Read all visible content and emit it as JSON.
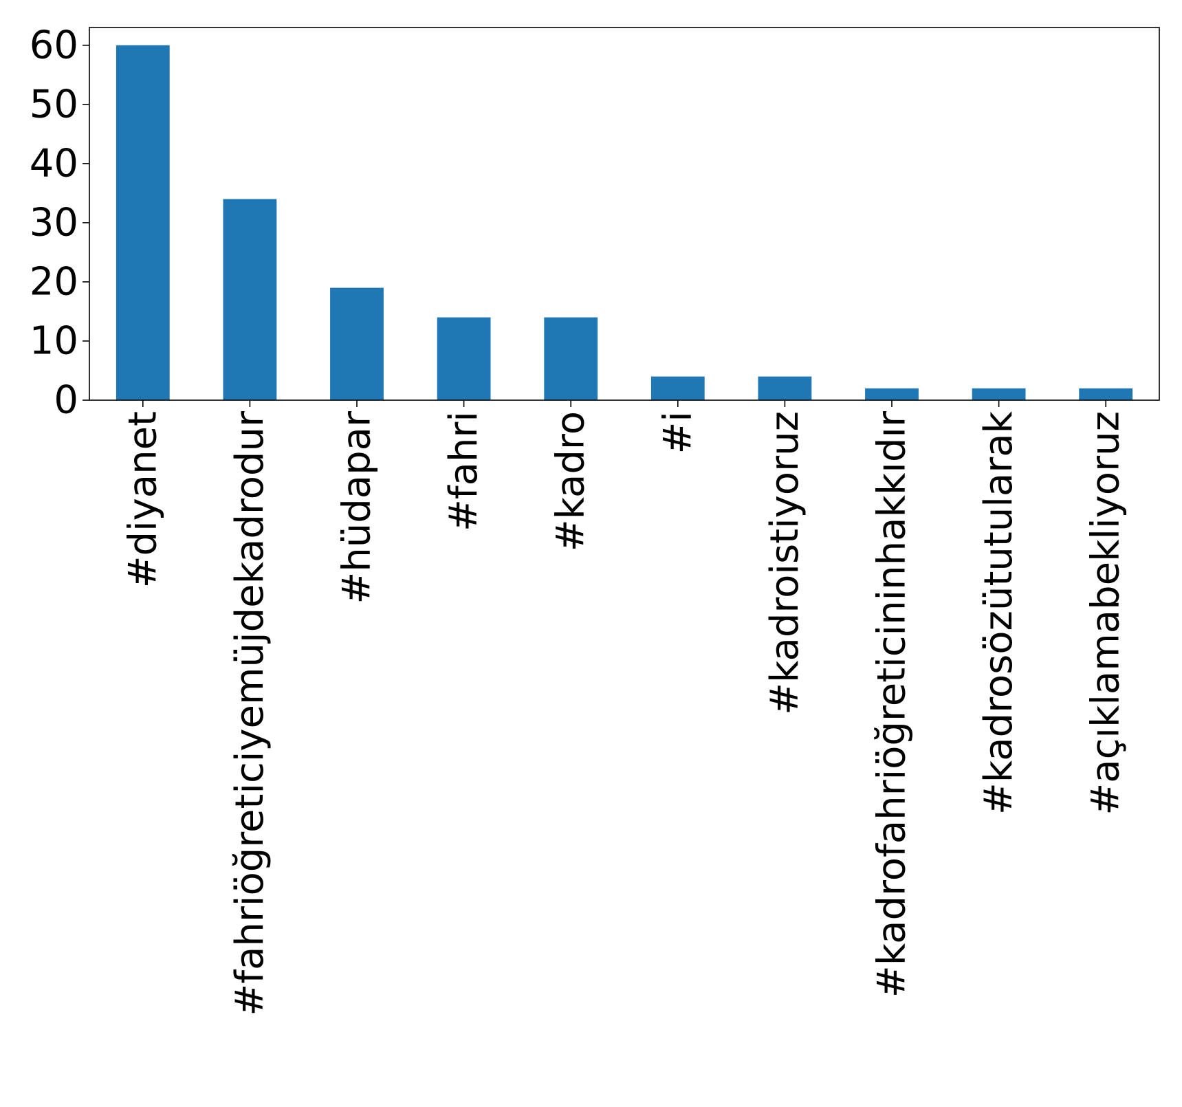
{
  "chart_data": {
    "type": "bar",
    "title": "",
    "xlabel": "",
    "ylabel": "",
    "categories": [
      "#diyanet",
      "#fahriöğreticiyemüjdekadrodur",
      "#hüdapar",
      "#fahri",
      "#kadro",
      "#i",
      "#kadroistiyoruz",
      "#kadrofahriöğreticininhakkıdır",
      "#kadrosözütutularak",
      "#açıklamabekliyoruz"
    ],
    "values": [
      60,
      34,
      19,
      14,
      14,
      4,
      4,
      2,
      2,
      2
    ],
    "ylim": [
      0,
      63
    ],
    "yticks": [
      0,
      10,
      20,
      30,
      40,
      50,
      60
    ],
    "grid": false,
    "legend": "none",
    "bar_color": "#1f77b4"
  }
}
